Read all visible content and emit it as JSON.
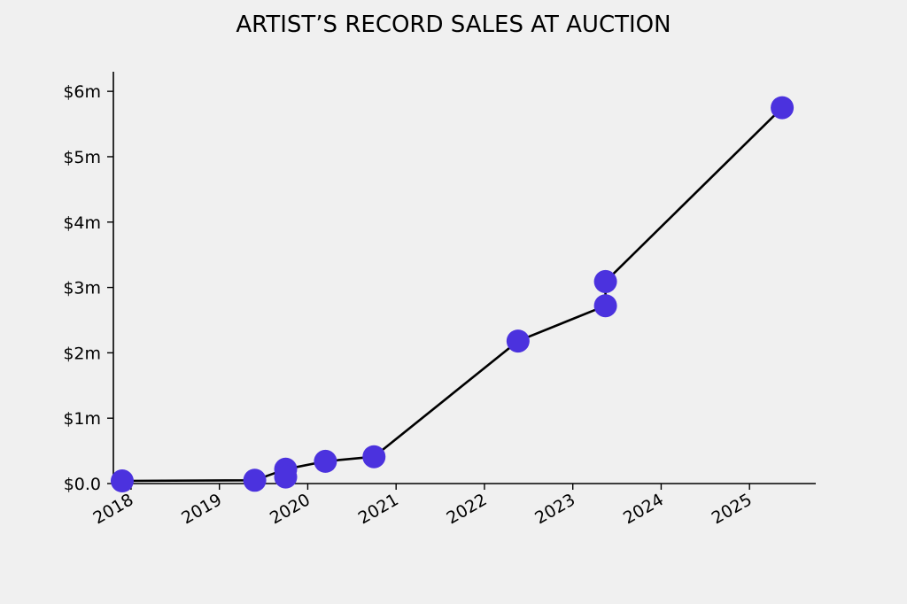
{
  "chart_data": {
    "type": "line",
    "title": "ARTIST’S RECORD SALES AT AUCTION",
    "xlabel": "",
    "ylabel": "",
    "xlim": [
      2017.8,
      2025.75
    ],
    "ylim": [
      0,
      6300000
    ],
    "grid": false,
    "x_ticks": [
      {
        "value": 2018,
        "label": "2018"
      },
      {
        "value": 2019,
        "label": "2019"
      },
      {
        "value": 2020,
        "label": "2020"
      },
      {
        "value": 2021,
        "label": "2021"
      },
      {
        "value": 2022,
        "label": "2022"
      },
      {
        "value": 2023,
        "label": "2023"
      },
      {
        "value": 2024,
        "label": "2024"
      },
      {
        "value": 2025,
        "label": "2025"
      }
    ],
    "y_ticks": [
      {
        "value": 0,
        "label": "$0.0"
      },
      {
        "value": 1000000,
        "label": "$1m"
      },
      {
        "value": 2000000,
        "label": "$2m"
      },
      {
        "value": 3000000,
        "label": "$3m"
      },
      {
        "value": 4000000,
        "label": "$4m"
      },
      {
        "value": 5000000,
        "label": "$5m"
      },
      {
        "value": 6000000,
        "label": "$6m"
      }
    ],
    "colors": {
      "line": "#000000",
      "marker": "#4b32de"
    },
    "line_points": [
      {
        "x": 2017.9,
        "y": 40000
      },
      {
        "x": 2019.4,
        "y": 50000
      },
      {
        "x": 2019.75,
        "y": 220000
      },
      {
        "x": 2020.2,
        "y": 340000
      },
      {
        "x": 2020.75,
        "y": 410000
      },
      {
        "x": 2022.38,
        "y": 2180000
      },
      {
        "x": 2023.37,
        "y": 2720000
      },
      {
        "x": 2023.37,
        "y": 3090000
      },
      {
        "x": 2025.37,
        "y": 5750000
      }
    ],
    "points": [
      {
        "x": 2017.9,
        "y": 40000
      },
      {
        "x": 2019.4,
        "y": 50000
      },
      {
        "x": 2019.75,
        "y": 220000
      },
      {
        "x": 2019.75,
        "y": 100000
      },
      {
        "x": 2020.2,
        "y": 340000
      },
      {
        "x": 2020.75,
        "y": 410000
      },
      {
        "x": 2022.38,
        "y": 2180000
      },
      {
        "x": 2023.37,
        "y": 2720000
      },
      {
        "x": 2023.37,
        "y": 3090000
      },
      {
        "x": 2025.37,
        "y": 5750000
      }
    ]
  }
}
